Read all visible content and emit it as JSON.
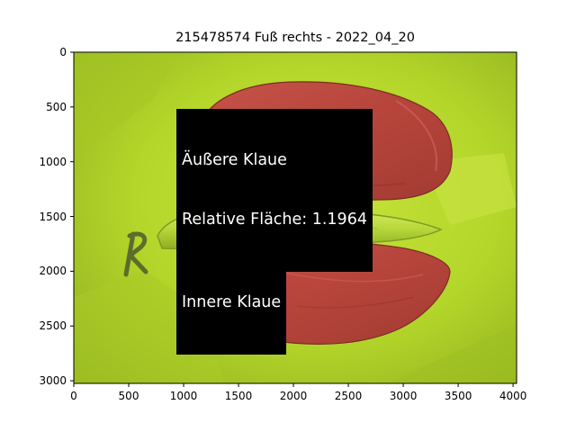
{
  "figure": {
    "title": "215478574 Fuß rechts - 2022_04_20",
    "x_ticks": [
      "0",
      "500",
      "1000",
      "1500",
      "2000",
      "2500",
      "3000",
      "3500",
      "4000"
    ],
    "y_ticks": [
      "0",
      "500",
      "1000",
      "1500",
      "2000",
      "2500",
      "3000"
    ],
    "x_tick_values": [
      0,
      500,
      1000,
      1500,
      2000,
      2500,
      3000,
      3500,
      4000
    ],
    "y_tick_values": [
      0,
      500,
      1000,
      1500,
      2000,
      2500,
      3000
    ],
    "x_range": [
      0,
      4032
    ],
    "y_range": [
      3024,
      0
    ],
    "annotations": {
      "outer": {
        "line1": "Äußere Klaue",
        "line2": "Relative Fläche: 1.1964"
      },
      "inner": {
        "line1": "Innere Klaue"
      }
    },
    "colors": {
      "background_fabric": "#b5d62a",
      "claw_overlay": "#b8403e",
      "annotation_box": "#000000",
      "annotation_text": "#ffffff"
    },
    "marker_letter": "R"
  }
}
